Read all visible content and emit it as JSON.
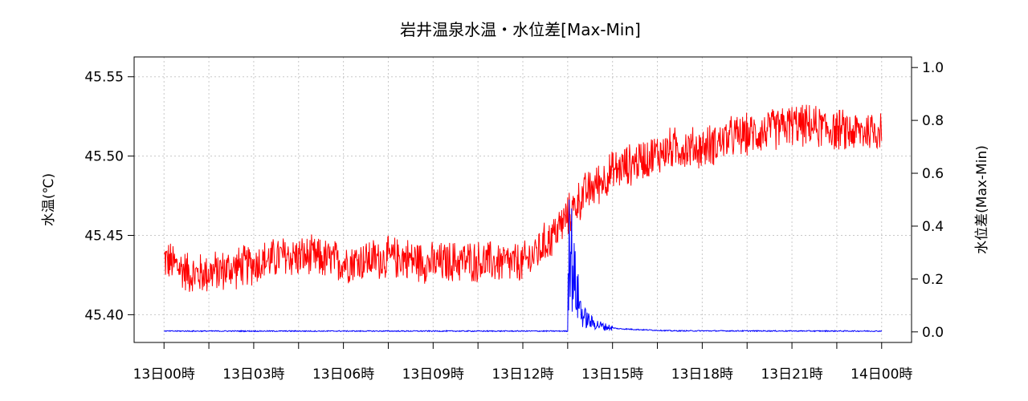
{
  "chart_data": {
    "type": "line",
    "title": "岩井温泉水温・水位差[Max-Min]",
    "ylabel": "水温(℃)",
    "y2label": "水位差(Max-Min)",
    "ylim": [
      45.3825,
      45.5625
    ],
    "y2lim": [
      -0.04,
      1.04
    ],
    "yticks": [
      "45.40",
      "45.45",
      "45.50",
      "45.55"
    ],
    "y2ticks": [
      "0.0",
      "0.2",
      "0.4",
      "0.6",
      "0.8",
      "1.0"
    ],
    "xlim_hours": [
      -1.0,
      25.0
    ],
    "xticks_hours": [
      0,
      3,
      6,
      9,
      12,
      15,
      18,
      21,
      24
    ],
    "xtick_labels": [
      "13日00時",
      "13日03時",
      "13日06時",
      "13日09時",
      "13日12時",
      "13日15時",
      "13日18時",
      "13日21時",
      "14日00時"
    ],
    "grid": true,
    "series": [
      {
        "color": "#ff0000",
        "axis": "left",
        "x_hours": [
          0,
          1,
          2,
          3,
          4,
          5,
          6,
          7,
          8,
          9,
          10,
          11,
          12,
          12.5,
          13,
          13.5,
          14,
          15,
          16,
          17,
          18,
          19,
          20,
          21,
          22,
          23,
          24
        ],
        "values": [
          45.435,
          45.425,
          45.428,
          45.432,
          45.437,
          45.436,
          45.433,
          45.435,
          45.436,
          45.432,
          45.434,
          45.433,
          45.432,
          45.44,
          45.45,
          45.462,
          45.475,
          45.49,
          45.498,
          45.505,
          45.505,
          45.512,
          45.515,
          45.52,
          45.518,
          45.515,
          45.517
        ],
        "noise": 0.015
      },
      {
        "color": "#0000ff",
        "axis": "right",
        "x_hours": [
          0,
          13.5,
          13.55,
          13.65,
          13.8,
          14.0,
          14.3,
          14.7,
          15.2,
          16.0,
          17.0,
          24
        ],
        "values": [
          0.003,
          0.003,
          0.45,
          0.25,
          0.15,
          0.06,
          0.035,
          0.02,
          0.012,
          0.008,
          0.004,
          0.003
        ]
      }
    ]
  }
}
